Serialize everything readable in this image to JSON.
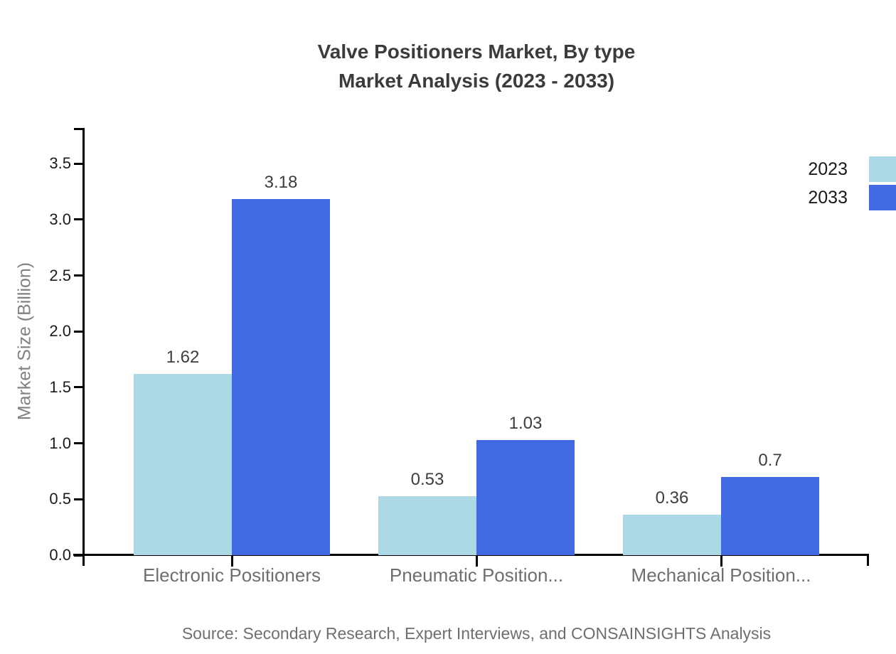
{
  "title": {
    "line1": "Valve Positioners Market, By type",
    "line2": "Market Analysis (2023 - 2033)"
  },
  "source_note": "Source: Secondary Research, Expert Interviews, and CONSAINSIGHTS Analysis",
  "colors": {
    "series_2023": "#ADD8E6",
    "series_2033": "#4169E1",
    "axis": "#000000",
    "title_text": "#3b3b3b",
    "category_text": "#6e6e6e",
    "axis_title_text": "#818181"
  },
  "chart_data": {
    "type": "bar",
    "title": "Valve Positioners Market, By type Market Analysis (2023 - 2033)",
    "xlabel": "",
    "ylabel": "Market Size (Billion)",
    "categories": [
      "Electronic Positioners",
      "Pneumatic Position...",
      "Mechanical Position..."
    ],
    "series": [
      {
        "name": "2023",
        "color": "#ADD8E6",
        "values": [
          1.62,
          0.53,
          0.36
        ],
        "labels": [
          "1.62",
          "0.53",
          "0.36"
        ]
      },
      {
        "name": "2033",
        "color": "#4169E1",
        "values": [
          3.18,
          1.03,
          0.7
        ],
        "labels": [
          "3.18",
          "1.03",
          "0.7"
        ]
      }
    ],
    "ytick_labels": [
      "0.0",
      "0.5",
      "1.0",
      "1.5",
      "2.0",
      "2.5",
      "3.0",
      "3.5"
    ],
    "yticks": [
      0.0,
      0.5,
      1.0,
      1.5,
      2.0,
      2.5,
      3.0,
      3.5
    ],
    "ylim": [
      0,
      3.82
    ],
    "grid": false,
    "legend_position": "top-right"
  }
}
